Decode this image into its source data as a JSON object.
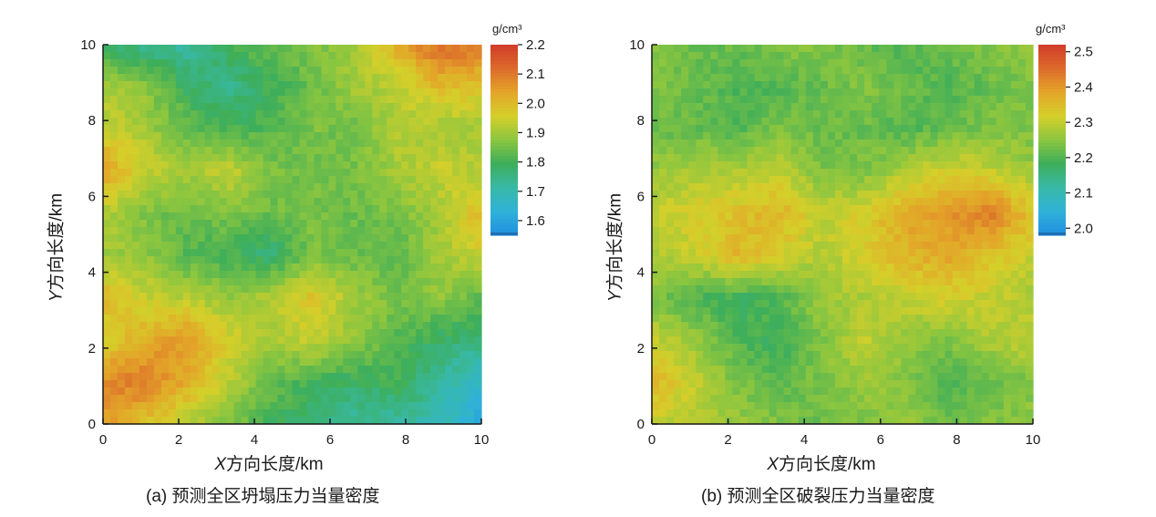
{
  "colors": {
    "colormap": [
      "#1f8fe0",
      "#2fb2d8",
      "#38b9a6",
      "#3dae5a",
      "#8cc63f",
      "#d5cf2a",
      "#e3a529",
      "#dc6b2b",
      "#d13c2a"
    ],
    "axis": "#1a1a1a",
    "background": "#ffffff"
  },
  "chart_data": [
    {
      "type": "heatmap",
      "caption": "(a) 预测全区坍塌压力当量密度",
      "xlabel_var": "X",
      "xlabel_text": "方向长度/km",
      "ylabel_var": "Y",
      "ylabel_text": "方向长度/km",
      "xlim": [
        0,
        10
      ],
      "ylim": [
        0,
        10
      ],
      "xticks": [
        "0",
        "2",
        "4",
        "6",
        "8",
        "10"
      ],
      "yticks": [
        "0",
        "2",
        "4",
        "6",
        "8",
        "10"
      ],
      "colorbar": {
        "unit": "g/cm³",
        "range": [
          1.55,
          2.2
        ],
        "ticks": [
          "1.6",
          "1.7",
          "1.8",
          "1.9",
          "2.0",
          "2.1",
          "2.2"
        ]
      },
      "grid_origin": "bottom-left",
      "values": [
        [
          2.05,
          1.98,
          1.92,
          1.86,
          1.8,
          1.76,
          1.72,
          1.72,
          1.7,
          1.6
        ],
        [
          2.08,
          2.1,
          2.02,
          1.92,
          1.84,
          1.8,
          1.78,
          1.8,
          1.72,
          1.66
        ],
        [
          1.95,
          2.02,
          2.06,
          1.96,
          1.9,
          1.94,
          1.88,
          1.82,
          1.78,
          1.76
        ],
        [
          2.0,
          1.94,
          1.92,
          1.88,
          1.92,
          1.98,
          1.9,
          1.86,
          1.88,
          1.82
        ],
        [
          1.9,
          1.88,
          1.82,
          1.8,
          1.76,
          1.86,
          1.84,
          1.82,
          1.9,
          1.95
        ],
        [
          1.92,
          1.86,
          1.84,
          1.86,
          1.84,
          1.86,
          1.84,
          1.86,
          1.9,
          2.0
        ],
        [
          2.04,
          1.94,
          1.9,
          1.94,
          1.86,
          1.84,
          1.86,
          1.9,
          1.94,
          1.92
        ],
        [
          1.95,
          1.9,
          1.84,
          1.8,
          1.82,
          1.86,
          1.84,
          1.92,
          1.9,
          1.9
        ],
        [
          1.9,
          1.88,
          1.78,
          1.74,
          1.8,
          1.84,
          1.9,
          1.92,
          2.0,
          1.98
        ],
        [
          1.78,
          1.74,
          1.72,
          1.8,
          1.84,
          1.86,
          1.9,
          2.02,
          2.12,
          2.1
        ]
      ]
    },
    {
      "type": "heatmap",
      "caption": "(b) 预测全区破裂压力当量密度",
      "xlabel_var": "X",
      "xlabel_text": "方向长度/km",
      "ylabel_var": "Y",
      "ylabel_text": "方向长度/km",
      "xlim": [
        0,
        10
      ],
      "ylim": [
        0,
        10
      ],
      "xticks": [
        "0",
        "2",
        "4",
        "6",
        "8",
        "10"
      ],
      "yticks": [
        "0",
        "2",
        "4",
        "6",
        "8",
        "10"
      ],
      "colorbar": {
        "unit": "g/cm³",
        "range": [
          1.98,
          2.52
        ],
        "ticks": [
          "2.0",
          "2.1",
          "2.2",
          "2.3",
          "2.4",
          "2.5"
        ]
      },
      "grid_origin": "bottom-left",
      "values": [
        [
          2.3,
          2.28,
          2.26,
          2.24,
          2.22,
          2.24,
          2.26,
          2.22,
          2.24,
          2.26
        ],
        [
          2.36,
          2.3,
          2.24,
          2.2,
          2.24,
          2.26,
          2.24,
          2.2,
          2.22,
          2.24
        ],
        [
          2.3,
          2.26,
          2.2,
          2.18,
          2.24,
          2.3,
          2.26,
          2.24,
          2.28,
          2.3
        ],
        [
          2.24,
          2.2,
          2.18,
          2.2,
          2.26,
          2.28,
          2.3,
          2.32,
          2.3,
          2.28
        ],
        [
          2.28,
          2.3,
          2.36,
          2.32,
          2.28,
          2.32,
          2.36,
          2.38,
          2.34,
          2.3
        ],
        [
          2.3,
          2.32,
          2.34,
          2.36,
          2.3,
          2.32,
          2.38,
          2.4,
          2.44,
          2.34
        ],
        [
          2.26,
          2.28,
          2.28,
          2.3,
          2.24,
          2.24,
          2.28,
          2.32,
          2.3,
          2.26
        ],
        [
          2.22,
          2.22,
          2.2,
          2.24,
          2.22,
          2.22,
          2.2,
          2.22,
          2.24,
          2.24
        ],
        [
          2.24,
          2.22,
          2.2,
          2.2,
          2.22,
          2.24,
          2.22,
          2.2,
          2.22,
          2.24
        ],
        [
          2.24,
          2.22,
          2.22,
          2.24,
          2.24,
          2.22,
          2.2,
          2.22,
          2.24,
          2.26
        ]
      ]
    }
  ]
}
